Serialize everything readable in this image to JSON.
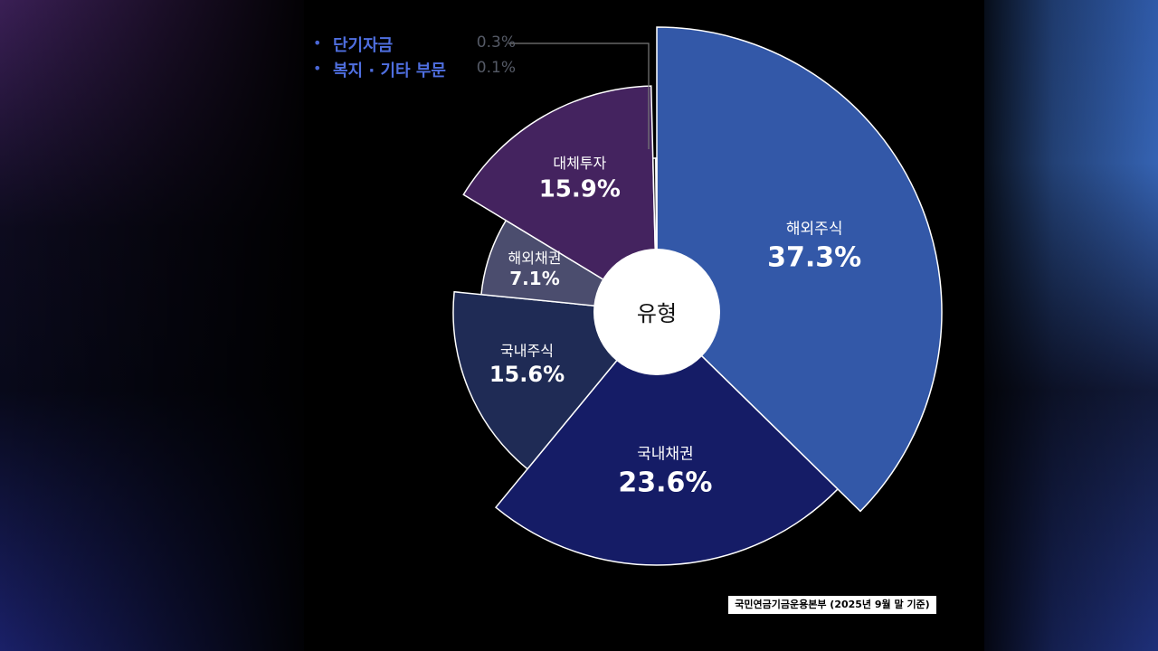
{
  "colors": {
    "overseas_stock": "#3358a8",
    "domestic_bond": "#151c66",
    "domestic_stock": "#1f2b55",
    "overseas_bond": "#4b4d6e",
    "alternative": "#44235f",
    "short_term": "#1a1a1a",
    "welfare_other": "#111111",
    "center_circle": "#ffffff"
  },
  "chart_data": {
    "type": "pie",
    "title": "",
    "center_label": "유형",
    "slices": [
      {
        "name": "해외주식",
        "value": 37.3,
        "label": "37.3%"
      },
      {
        "name": "국내채권",
        "value": 23.6,
        "label": "23.6%"
      },
      {
        "name": "국내주식",
        "value": 15.6,
        "label": "15.6%"
      },
      {
        "name": "해외채권",
        "value": 7.1,
        "label": "7.1%"
      },
      {
        "name": "대체투자",
        "value": 15.9,
        "label": "15.9%"
      },
      {
        "name": "단기자금",
        "value": 0.3,
        "label": "0.3%"
      },
      {
        "name": "복지 · 기타 부문",
        "value": 0.1,
        "label": "0.1%"
      }
    ],
    "small_legend": [
      {
        "bullet": "•",
        "label": "단기자금",
        "value": "0.3%"
      },
      {
        "bullet": "•",
        "label": "복지 · 기타 부문",
        "value": "0.1%"
      }
    ]
  },
  "source_note": "국민연금기금운용본부 (2025년 9월 말 기준)"
}
